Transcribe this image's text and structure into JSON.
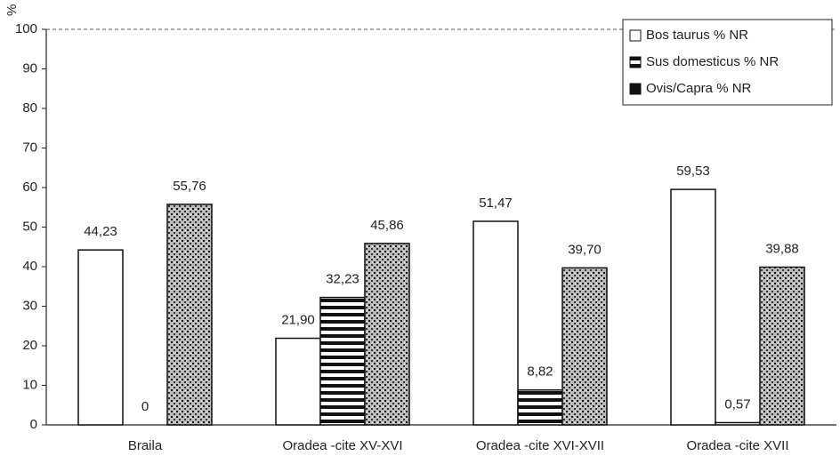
{
  "chart_data": {
    "type": "bar",
    "y_label": "%",
    "categories": [
      "Braila",
      "Oradea -cite XV-XVI",
      "Oradea -cite XVI-XVII",
      "Oradea -cite XVII"
    ],
    "series": [
      {
        "name": "Bos taurus % NR",
        "color": "#ffffff",
        "pattern": "solid",
        "values": [
          44.23,
          21.9,
          51.47,
          59.53
        ],
        "value_labels": [
          "44,23",
          "21,90",
          "51,47",
          "59,53"
        ]
      },
      {
        "name": "Sus domesticus % NR",
        "color": "#111111",
        "pattern": "stripes",
        "values": [
          0,
          32.23,
          8.82,
          0.57
        ],
        "value_labels": [
          "0",
          "32,23",
          "8,82",
          "0,57"
        ]
      },
      {
        "name": "Ovis/Capra % NR",
        "color": "#111111",
        "pattern": "stipple",
        "values": [
          55.76,
          45.86,
          39.7,
          39.88
        ],
        "value_labels": [
          "55,76",
          "45,86",
          "39,70",
          "39,88"
        ]
      }
    ],
    "ylim": [
      0,
      100
    ],
    "yticks": [
      0,
      10,
      20,
      30,
      40,
      50,
      60,
      70,
      80,
      90,
      100
    ],
    "legend": "top-right"
  }
}
